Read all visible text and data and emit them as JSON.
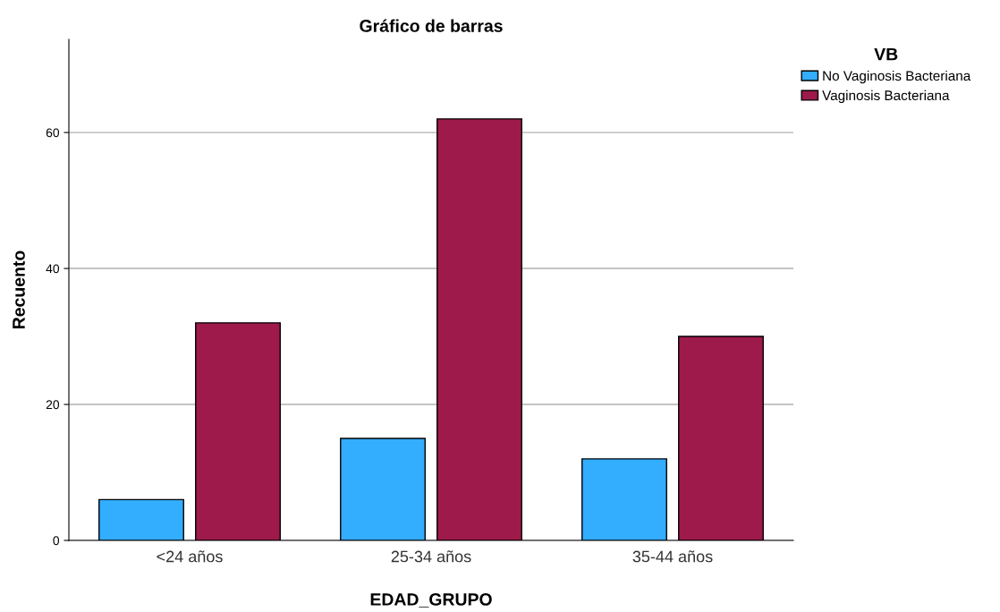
{
  "chart_data": {
    "type": "bar",
    "title": "Gráfico de barras",
    "xlabel": "EDAD_GRUPO",
    "ylabel": "Recuento",
    "legend_title": "VB",
    "categories": [
      "<24 años",
      "25-34 años",
      "35-44 años"
    ],
    "series": [
      {
        "name": "No Vaginosis Bacteriana",
        "color": "#33adfe",
        "values": [
          6,
          15,
          12
        ]
      },
      {
        "name": "Vaginosis Bacteriana",
        "color": "#9e1a4a",
        "values": [
          32,
          62,
          30
        ]
      }
    ],
    "ylim": [
      0,
      73.7
    ],
    "yticks": [
      0,
      20,
      40,
      60
    ],
    "grid": "y",
    "legend": "top right"
  }
}
